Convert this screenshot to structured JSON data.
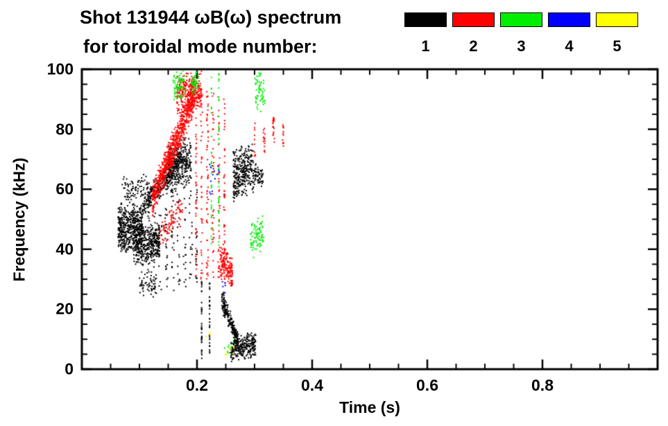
{
  "title": {
    "line1": "Shot 131944 ωB(ω) spectrum",
    "line2": "for toroidal mode number:"
  },
  "legend": {
    "entries": [
      {
        "label": "1",
        "color": "#000000"
      },
      {
        "label": "2",
        "color": "#ff0000"
      },
      {
        "label": "3",
        "color": "#00ee00"
      },
      {
        "label": "4",
        "color": "#0000ff"
      },
      {
        "label": "5",
        "color": "#ffff00"
      }
    ]
  },
  "axes": {
    "xlabel": "Time (s)",
    "ylabel": "Frequency (kHz)"
  },
  "chart_data": {
    "type": "scatter",
    "title": "Shot 131944 ωB(ω) spectrum for toroidal mode number",
    "xlabel": "Time (s)",
    "ylabel": "Frequency (kHz)",
    "xlim": [
      0,
      1.0
    ],
    "ylim": [
      0,
      100
    ],
    "x_major_ticks": [
      0.2,
      0.4,
      0.6,
      0.8
    ],
    "x_tick_labels": [
      "0.2",
      "0.4",
      "0.6",
      "0.8"
    ],
    "x_minor_step": 0.05,
    "y_major_ticks": [
      0,
      20,
      40,
      60,
      80,
      100
    ],
    "y_tick_labels": [
      "0",
      "20",
      "40",
      "60",
      "80",
      "100"
    ],
    "y_minor_step": 5,
    "grid": false,
    "legend_position": "top-right",
    "series": [
      {
        "name": "n=1",
        "color": "#000000",
        "clusters": [
          {
            "n": 500,
            "t": [
              0.063,
              0.105
            ],
            "f0": [
              38,
              56
            ],
            "f1": [
              38,
              56
            ]
          },
          {
            "n": 350,
            "t": [
              0.09,
              0.135
            ],
            "f0": [
              33,
              48
            ],
            "f1": [
              35,
              50
            ]
          },
          {
            "n": 90,
            "t": [
              0.07,
              0.125
            ],
            "f0": [
              55,
              66
            ],
            "f1": [
              55,
              66
            ]
          },
          {
            "n": 300,
            "t": [
              0.105,
              0.17
            ],
            "f0": [
              50,
              58
            ],
            "f1": [
              64,
              74
            ]
          },
          {
            "n": 320,
            "t": [
              0.15,
              0.19
            ],
            "f0": [
              58,
              78
            ],
            "f1": [
              60,
              78
            ]
          },
          {
            "n": 180,
            "t": [
              0.115,
              0.2
            ],
            "f0": [
              24,
              58
            ],
            "f1": [
              28,
              62
            ],
            "cols": 9
          },
          {
            "n": 70,
            "t": [
              0.208,
              0.222
            ],
            "f0": [
              3,
              30
            ],
            "f1": [
              3,
              30
            ],
            "cols": 2
          },
          {
            "n": 220,
            "t": [
              0.243,
              0.272
            ],
            "f0": [
              18,
              28
            ],
            "f1": [
              6,
              12
            ]
          },
          {
            "n": 260,
            "t": [
              0.258,
              0.302
            ],
            "f0": [
              2,
              10
            ],
            "f1": [
              4,
              14
            ]
          },
          {
            "n": 300,
            "t": [
              0.263,
              0.298
            ],
            "f0": [
              55,
              75
            ],
            "f1": [
              58,
              76
            ]
          },
          {
            "n": 60,
            "t": [
              0.295,
              0.315
            ],
            "f0": [
              58,
              70
            ],
            "f1": [
              60,
              68
            ]
          },
          {
            "n": 50,
            "t": [
              0.1,
              0.13
            ],
            "f0": [
              24,
              33
            ],
            "f1": [
              24,
              33
            ]
          }
        ]
      },
      {
        "name": "n=2",
        "color": "#ff0000",
        "clusters": [
          {
            "n": 750,
            "t": [
              0.122,
              0.196
            ],
            "f0": [
              50,
              62
            ],
            "f1": [
              84,
              99
            ]
          },
          {
            "n": 280,
            "t": [
              0.165,
              0.208
            ],
            "f0": [
              84,
              100
            ],
            "f1": [
              86,
              100
            ]
          },
          {
            "n": 80,
            "t": [
              0.13,
              0.175
            ],
            "f0": [
              38,
              50
            ],
            "f1": [
              48,
              60
            ]
          },
          {
            "n": 260,
            "t": [
              0.198,
              0.248
            ],
            "f0": [
              30,
              95
            ],
            "f1": [
              30,
              90
            ],
            "cols": 6
          },
          {
            "n": 160,
            "t": [
              0.24,
              0.262
            ],
            "f0": [
              30,
              44
            ],
            "f1": [
              26,
              38
            ]
          },
          {
            "n": 60,
            "t": [
              0.3,
              0.35
            ],
            "f0": [
              70,
              84
            ],
            "f1": [
              74,
              84
            ],
            "cols": 4
          }
        ]
      },
      {
        "name": "n=3",
        "color": "#00ee00",
        "clusters": [
          {
            "n": 70,
            "t": [
              0.158,
              0.178
            ],
            "f0": [
              88,
              100
            ],
            "f1": [
              90,
              100
            ]
          },
          {
            "n": 50,
            "t": [
              0.19,
              0.202
            ],
            "f0": [
              90,
              100
            ],
            "f1": [
              92,
              100
            ]
          },
          {
            "n": 70,
            "t": [
              0.225,
              0.238
            ],
            "f0": [
              40,
              100
            ],
            "f1": [
              40,
              100
            ],
            "cols": 2
          },
          {
            "n": 90,
            "t": [
              0.293,
              0.316
            ],
            "f0": [
              36,
              50
            ],
            "f1": [
              40,
              52
            ]
          },
          {
            "n": 60,
            "t": [
              0.3,
              0.318
            ],
            "f0": [
              84,
              100
            ],
            "f1": [
              86,
              100
            ]
          },
          {
            "n": 12,
            "t": [
              0.248,
              0.268
            ],
            "f0": [
              4,
              12
            ],
            "f1": [
              4,
              12
            ]
          }
        ]
      },
      {
        "name": "n=4",
        "color": "#0000ff",
        "clusters": [
          {
            "n": 14,
            "t": [
              0.222,
              0.24
            ],
            "f0": [
              56,
              70
            ],
            "f1": [
              58,
              70
            ]
          },
          {
            "n": 6,
            "t": [
              0.243,
              0.25
            ],
            "f0": [
              24,
              30
            ],
            "f1": [
              24,
              30
            ]
          }
        ]
      },
      {
        "name": "n=5",
        "color": "#ffff00",
        "clusters": [
          {
            "n": 10,
            "t": [
              0.248,
              0.27
            ],
            "f0": [
              3,
              10
            ],
            "f1": [
              3,
              10
            ]
          },
          {
            "n": 4,
            "t": [
              0.215,
              0.225
            ],
            "f0": [
              10,
              14
            ],
            "f1": [
              10,
              14
            ]
          }
        ]
      }
    ]
  }
}
